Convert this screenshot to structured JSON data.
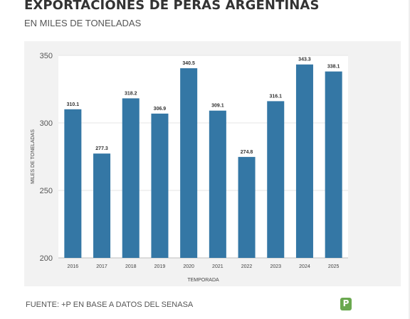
{
  "header": {
    "title": "EXPORTACIONES DE PERAS ARGENTINAS",
    "subtitle": "EN MILES DE TONELADAS"
  },
  "footer": {
    "source": "FUENTE: +P EN BASE A DATOS DEL SENASA",
    "logo_icon": "p-logo-icon",
    "logo_glyph": "P"
  },
  "chart_data": {
    "type": "bar",
    "xlabel": "TEMPORADA",
    "ylabel": "MILES DE TONELADAS",
    "categories": [
      "2016",
      "2017",
      "2018",
      "2019",
      "2020",
      "2021",
      "2022",
      "2023",
      "2024",
      "2025"
    ],
    "values": [
      310.1,
      277.3,
      318.2,
      306.9,
      340.5,
      309.1,
      274.8,
      316.1,
      343.3,
      338.1
    ],
    "ylim": [
      200,
      350
    ],
    "yticks": [
      200,
      250,
      300,
      350
    ],
    "bar_color": "#3477a5",
    "grid": true,
    "legend": "none"
  }
}
